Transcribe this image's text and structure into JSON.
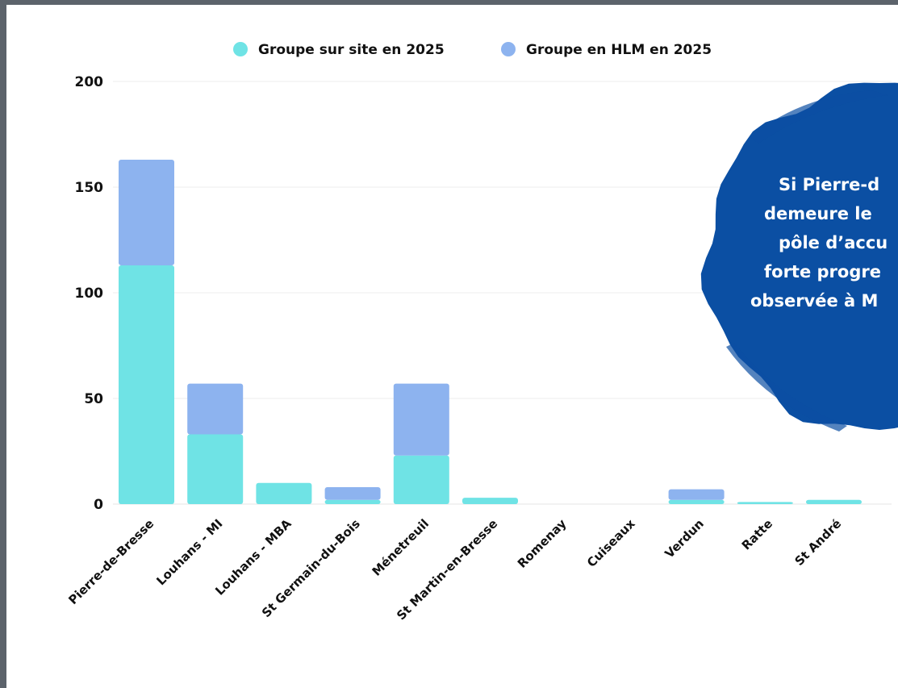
{
  "chart_data": {
    "type": "bar",
    "stacked": true,
    "categories": [
      "Pierre-de-Bresse",
      "Louhans - MI",
      "Louhans - MBA",
      "St Germain-du-Bois",
      "Ménetreuil",
      "St Martin-en-Bresse",
      "Romenay",
      "Cuiseaux",
      "Verdun",
      "Ratte",
      "St André"
    ],
    "series": [
      {
        "name": "Groupe sur site en 2025",
        "color": "#6fe3e5",
        "values": [
          113,
          33,
          10,
          2,
          23,
          3,
          0,
          0,
          2,
          1,
          2
        ]
      },
      {
        "name": "Groupe en HLM en 2025",
        "color": "#8db3ef",
        "values": [
          50,
          24,
          0,
          6,
          34,
          0,
          0,
          0,
          5,
          0,
          0
        ]
      }
    ],
    "ylim": [
      0,
      200
    ],
    "yticks": [
      0,
      50,
      100,
      150,
      200
    ],
    "grid": true,
    "legend_position": "top-center",
    "title": "",
    "xlabel": "",
    "ylabel": ""
  },
  "callout": {
    "color": "#0b4fa3",
    "lines": [
      "Si Pierre-d",
      "demeure le",
      "pôle d’accu",
      "forte progre",
      "observée à M"
    ]
  }
}
